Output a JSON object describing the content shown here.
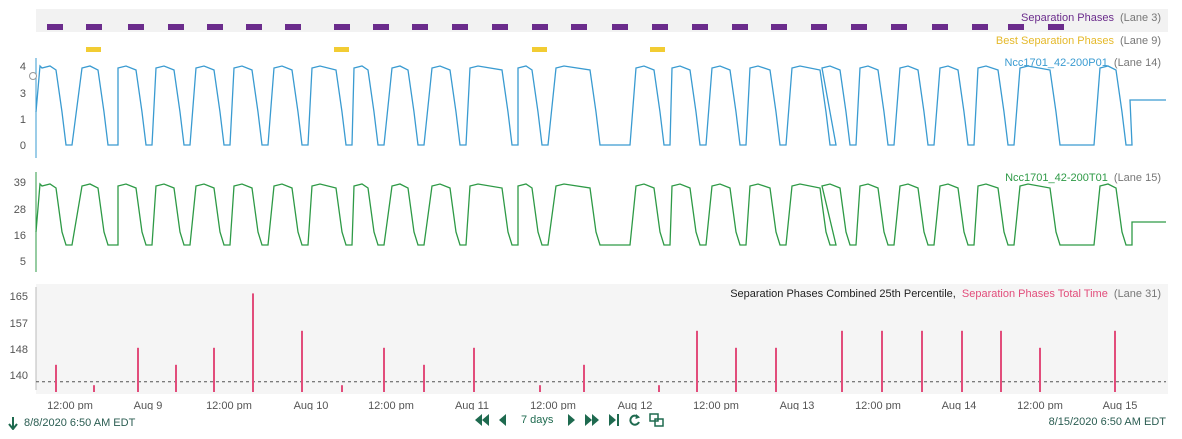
{
  "lanes": {
    "separation": {
      "name": "Separation Phases",
      "lane": "(Lane 3)",
      "color": "#6b2c8c"
    },
    "best": {
      "name": "Best Separation Phases",
      "lane": "(Lane 9)",
      "color": "#f2cc33"
    },
    "pressure": {
      "name": "Ncc1701_42-200P01",
      "lane": "(Lane 14)",
      "color": "#3a9bd1",
      "ticks": [
        "4",
        "3",
        "1",
        "0"
      ]
    },
    "temperature": {
      "name": "Ncc1701_42-200T01",
      "lane": "(Lane 15)",
      "color": "#2e9a46",
      "ticks": [
        "39",
        "28",
        "16",
        "5"
      ]
    },
    "percentile": {
      "name_a": "Separation Phases Combined 25th Percentile,",
      "name_b": "Separation Phases Total Time",
      "lane": "(Lane 31)",
      "color": "#e24d7b",
      "ticks": [
        "165",
        "157",
        "148",
        "140"
      ]
    }
  },
  "axis": {
    "labels": [
      "12:00 pm",
      "Aug 9",
      "12:00 pm",
      "Aug 10",
      "12:00 pm",
      "Aug 11",
      "12:00 pm",
      "Aug 12",
      "12:00 pm",
      "Aug 13",
      "12:00 pm",
      "Aug 14",
      "12:00 pm",
      "Aug 15"
    ]
  },
  "footer": {
    "start": "8/8/2020 6:50 AM  EDT",
    "end": "8/15/2020 6:50 AM  EDT",
    "range": "7 days"
  },
  "chart_data": {
    "type": "bar",
    "title": "Separation Phases Combined 25th Percentile, Separation Phases Total Time (Lane 31)",
    "ylim": [
      137,
      167
    ],
    "threshold": 140,
    "values": [
      145,
      139,
      150,
      145,
      150,
      166,
      155,
      139,
      150,
      145,
      150,
      139,
      145,
      139,
      155,
      150,
      150,
      155,
      155,
      155,
      155,
      155,
      150,
      155
    ]
  },
  "colors": {
    "axis_text": "#555555",
    "footer_text": "#2b5d52",
    "nav": "#1e6a4f"
  }
}
